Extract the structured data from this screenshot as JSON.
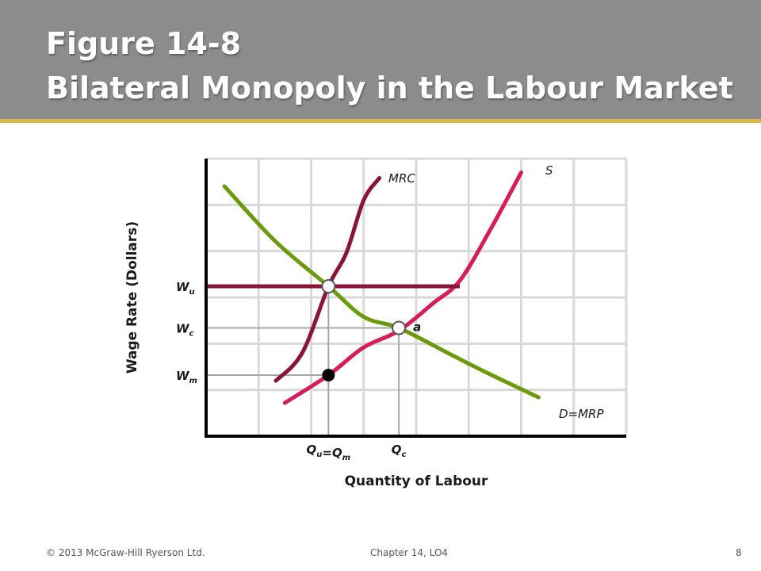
{
  "slide": {
    "title_line1": "Figure 14-8",
    "title_line2": "Bilateral Monopoly in the Labour Market",
    "footer_left": "© 2013 McGraw-Hill Ryerson Ltd.",
    "footer_center": "Chapter 14, LO4",
    "page_number": "8"
  },
  "colors": {
    "title_bar": "#8c8c8c",
    "title_rule": "#d8b94a",
    "demand": "#6b9a0c",
    "supply": "#d81b5a",
    "mrc": "#8b1538",
    "union_wage_line": "#8b1538",
    "guide_lines": "#a6a6a6",
    "grid": "#d9d9d9"
  },
  "chart_data": {
    "type": "line",
    "title": "",
    "xlabel": "Quantity of Labour",
    "ylabel": "Wage Rate (Dollars)",
    "grid": true,
    "series": [
      {
        "name": "D=MRP",
        "points": [
          [
            0.35,
            9.0
          ],
          [
            1.33,
            7.0
          ],
          [
            2.33,
            5.4
          ],
          [
            3.0,
            4.3
          ],
          [
            3.67,
            3.9
          ],
          [
            4.6,
            3.0
          ],
          [
            5.33,
            2.3
          ],
          [
            6.33,
            1.4
          ]
        ]
      },
      {
        "name": "S",
        "points": [
          [
            1.5,
            1.2
          ],
          [
            2.33,
            2.2
          ],
          [
            3.0,
            3.2
          ],
          [
            3.67,
            3.8
          ],
          [
            4.33,
            4.8
          ],
          [
            4.83,
            5.6
          ],
          [
            5.4,
            7.4
          ],
          [
            6.0,
            9.5
          ]
        ]
      },
      {
        "name": "MRC",
        "points": [
          [
            1.33,
            2.0
          ],
          [
            1.83,
            3.0
          ],
          [
            2.33,
            5.4
          ],
          [
            2.67,
            6.6
          ],
          [
            3.0,
            8.5
          ],
          [
            3.3,
            9.3
          ]
        ]
      }
    ],
    "points": [
      {
        "label": "",
        "x": 2.33,
        "y": 5.4,
        "style": "open"
      },
      {
        "label": "a",
        "x": 3.67,
        "y": 3.9,
        "style": "open"
      },
      {
        "label": "",
        "x": 2.33,
        "y": 2.2,
        "style": "filled"
      }
    ],
    "y_ticks": [
      {
        "main": "W",
        "sub": "u",
        "value": 5.4
      },
      {
        "main": "W",
        "sub": "c",
        "value": 3.9
      },
      {
        "main": "W",
        "sub": "m",
        "value": 2.2
      }
    ],
    "x_ticks": [
      {
        "parts": [
          [
            "Q",
            "u"
          ],
          [
            "=Q",
            "m"
          ]
        ],
        "value": 2.33
      },
      {
        "parts": [
          [
            "Q",
            "c"
          ]
        ],
        "value": 3.67
      }
    ],
    "union_wage_line": {
      "y": 5.4,
      "x_end": 4.83
    },
    "xlim": [
      0,
      8
    ],
    "ylim": [
      0,
      10
    ]
  }
}
